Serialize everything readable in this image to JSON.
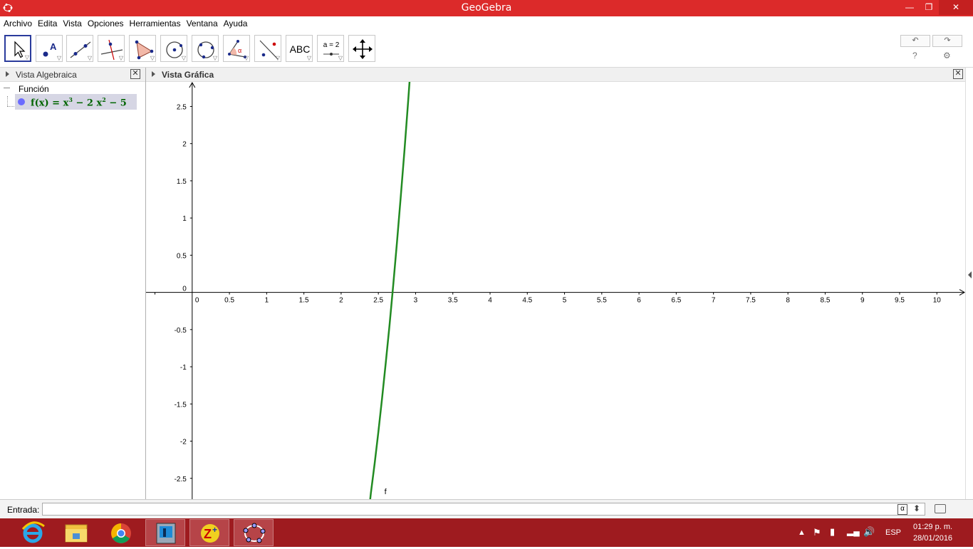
{
  "window": {
    "title": "GeoGebra",
    "minimize": "—",
    "restore": "❐",
    "close": "✕"
  },
  "menu": [
    "Archivo",
    "Edita",
    "Vista",
    "Opciones",
    "Herramientas",
    "Ventana",
    "Ayuda"
  ],
  "toolbar": {
    "tools": [
      "move-tool",
      "point-tool",
      "line-tool",
      "perpendicular-tool",
      "polygon-tool",
      "circle-center-tool",
      "circle-three-points-tool",
      "angle-tool",
      "reflect-tool",
      "text-tool",
      "slider-tool",
      "move-view-tool"
    ],
    "text_tool_label": "ABC",
    "slider_tool_label": "a = 2",
    "undo": "↶",
    "redo": "↷",
    "help": "?",
    "settings": "⚙"
  },
  "algebra": {
    "header": "Vista Algebraica",
    "group": "Función",
    "item_name": "f(x) = ",
    "item_expr_a": "x",
    "item_exp1": "3",
    "item_expr_b": " − 2 x",
    "item_exp2": "2",
    "item_expr_c": " − 5",
    "point_color": "#6b6bff",
    "text_color": "#006400"
  },
  "graphics": {
    "header": "Vista Gráfica",
    "curve_label": "f",
    "curve_color": "#228b22"
  },
  "chart_data": {
    "type": "line",
    "function": "x^3 - 2x^2 - 5",
    "x_ticks": [
      "0",
      "0.5",
      "1",
      "1.5",
      "2",
      "2.5",
      "3",
      "3.5",
      "4",
      "4.5",
      "5",
      "5.5",
      "6",
      "6.5",
      "7",
      "7.5",
      "8",
      "8.5",
      "9",
      "9.5",
      "10"
    ],
    "y_ticks": [
      "2.5",
      "2",
      "1.5",
      "1",
      "0.5",
      "0",
      "-0.5",
      "-1",
      "-1.5",
      "-2",
      "-2.5"
    ],
    "xlim": [
      -0.62,
      10.38
    ],
    "ylim": [
      -2.78,
      2.83
    ],
    "grid": false,
    "series": [
      {
        "label": "f",
        "x": [
          2.35,
          2.4,
          2.45,
          2.5,
          2.55,
          2.6,
          2.65,
          2.7,
          2.75,
          2.8,
          2.85,
          2.9,
          2.95
        ],
        "y": [
          -3.1483,
          -2.696,
          -2.2989,
          -1.875,
          -1.4234,
          -0.944,
          -0.4361,
          0.103,
          0.6719,
          1.272,
          1.9041,
          2.569,
          3.2669
        ]
      }
    ]
  },
  "input": {
    "label": "Entrada:",
    "alpha": "α",
    "updown": "⬍"
  },
  "taskbar": {
    "apps": [
      "internet-explorer",
      "file-explorer",
      "chrome",
      "app-4",
      "app-5",
      "geogebra"
    ],
    "lang": "ESP",
    "time": "01:29 p. m.",
    "date": "28/01/2016"
  }
}
